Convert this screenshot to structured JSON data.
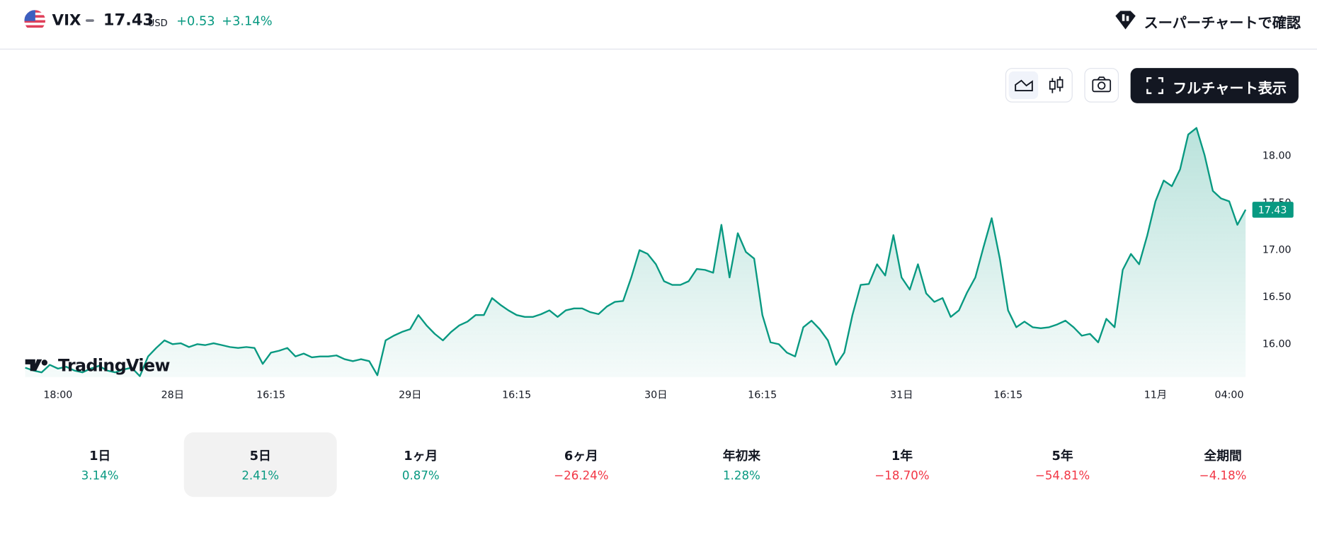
{
  "header": {
    "symbol": "VIX",
    "price": "17.43",
    "currency": "USD",
    "change": "+0.53",
    "change_percent": "+3.14%",
    "supercharts_link": "スーパーチャートで確認"
  },
  "toolbar": {
    "fullchart_button": "フルチャート表示"
  },
  "watermark": "TradingView",
  "chart_data": {
    "type": "area",
    "color": "#089981",
    "categories": [
      null,
      null,
      null,
      null,
      "18:00",
      null,
      null,
      null,
      null,
      null,
      null,
      null,
      null,
      null,
      null,
      null,
      null,
      null,
      "28日",
      null,
      null,
      null,
      null,
      null,
      null,
      null,
      null,
      null,
      null,
      null,
      "16:15",
      null,
      null,
      null,
      null,
      null,
      null,
      null,
      null,
      null,
      null,
      null,
      null,
      null,
      null,
      null,
      null,
      "29日",
      null,
      null,
      null,
      null,
      null,
      null,
      null,
      null,
      null,
      null,
      null,
      null,
      "16:15",
      null,
      null,
      null,
      null,
      null,
      null,
      null,
      null,
      null,
      null,
      null,
      null,
      null,
      null,
      null,
      null,
      "30日",
      null,
      null,
      null,
      null,
      null,
      null,
      null,
      null,
      null,
      null,
      null,
      null,
      "16:15",
      null,
      null,
      null,
      null,
      null,
      null,
      null,
      null,
      null,
      null,
      null,
      null,
      null,
      null,
      null,
      null,
      "31日",
      null,
      null,
      null,
      null,
      null,
      null,
      null,
      null,
      null,
      null,
      null,
      null,
      "16:15",
      null,
      null,
      null,
      null,
      null,
      null,
      null,
      null,
      null,
      null,
      null,
      null,
      null,
      null,
      null,
      null,
      null,
      "11月",
      null,
      null,
      null,
      null,
      null,
      null,
      null,
      null,
      "04:00",
      null,
      null
    ],
    "values": [
      15.75,
      15.72,
      15.7,
      15.78,
      15.74,
      15.76,
      15.72,
      15.7,
      15.74,
      15.77,
      15.72,
      15.7,
      15.73,
      15.75,
      15.66,
      15.87,
      15.96,
      16.04,
      16.0,
      16.01,
      15.97,
      16.0,
      15.99,
      16.01,
      15.99,
      15.97,
      15.96,
      15.97,
      15.96,
      15.79,
      15.91,
      15.93,
      15.96,
      15.87,
      15.9,
      15.86,
      15.87,
      15.87,
      15.88,
      15.84,
      15.82,
      15.84,
      15.82,
      15.67,
      16.04,
      16.09,
      16.13,
      16.16,
      16.31,
      16.2,
      16.11,
      16.04,
      16.13,
      16.2,
      16.24,
      16.31,
      16.31,
      16.49,
      16.42,
      16.36,
      16.31,
      16.29,
      16.29,
      16.32,
      16.36,
      16.29,
      16.36,
      16.38,
      16.38,
      16.34,
      16.32,
      16.4,
      16.45,
      16.46,
      16.71,
      17.0,
      16.96,
      16.85,
      16.67,
      16.63,
      16.63,
      16.67,
      16.8,
      16.79,
      16.76,
      17.27,
      16.71,
      17.18,
      16.98,
      16.91,
      16.31,
      16.02,
      16.0,
      15.91,
      15.87,
      16.18,
      16.25,
      16.16,
      16.04,
      15.78,
      15.91,
      16.31,
      16.63,
      16.64,
      16.85,
      16.73,
      17.16,
      16.71,
      16.58,
      16.85,
      16.54,
      16.45,
      16.49,
      16.29,
      16.36,
      16.55,
      16.71,
      17.03,
      17.34,
      16.91,
      16.36,
      16.18,
      16.24,
      16.18,
      16.17,
      16.18,
      16.21,
      16.25,
      16.18,
      16.09,
      16.11,
      16.02,
      16.27,
      16.18,
      16.79,
      16.96,
      16.85,
      17.16,
      17.52,
      17.74,
      17.68,
      17.86,
      18.23,
      18.3,
      18.01,
      17.63,
      17.55,
      17.52,
      17.27,
      17.43
    ],
    "ylim": [
      15.65,
      18.4
    ],
    "yticks": [
      {
        "value": 16,
        "label": "16.00"
      },
      {
        "value": 16.5,
        "label": "16.50"
      },
      {
        "value": 17,
        "label": "17.00"
      },
      {
        "value": 17.5,
        "label": "17.50"
      },
      {
        "value": 18,
        "label": "18.00"
      }
    ]
  },
  "periods": [
    {
      "label": "1日",
      "change": "3.14%",
      "color": "#089981"
    },
    {
      "label": "5日",
      "change": "2.41%",
      "color": "#089981"
    },
    {
      "label": "1ヶ月",
      "change": "0.87%",
      "color": "#089981"
    },
    {
      "label": "6ヶ月",
      "change": "−26.24%",
      "color": "#f23645"
    },
    {
      "label": "年初来",
      "change": "1.28%",
      "color": "#089981"
    },
    {
      "label": "1年",
      "change": "−18.70%",
      "color": "#f23645"
    },
    {
      "label": "5年",
      "change": "−54.81%",
      "color": "#f23645"
    },
    {
      "label": "全期間",
      "change": "−4.18%",
      "color": "#f23645"
    }
  ],
  "selected_period": 1
}
